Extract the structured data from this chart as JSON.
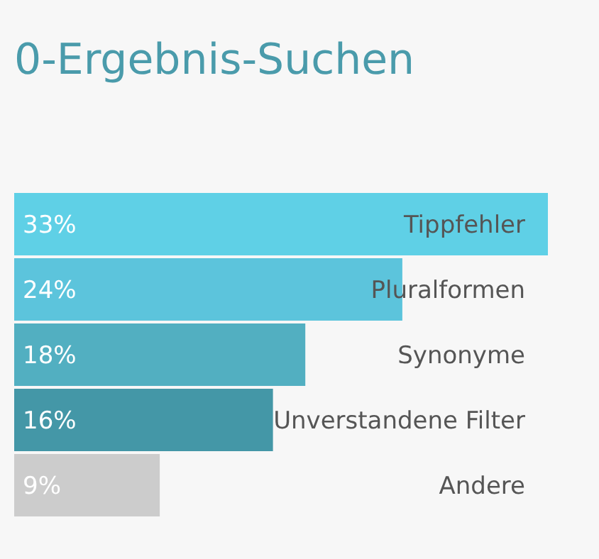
{
  "chart_data": {
    "type": "bar",
    "orientation": "horizontal",
    "title": "0-Ergebnis-Suchen",
    "categories": [
      "Tippfehler",
      "Pluralformen",
      "Synonyme",
      "Unverstandene Filter",
      "Andere"
    ],
    "values": [
      33,
      24,
      18,
      16,
      9
    ],
    "colors": [
      "#5fd0e6",
      "#5cc4dc",
      "#52afc1",
      "#4497a7",
      "#cccccc"
    ],
    "value_labels": [
      "33%",
      "24%",
      "18%",
      "16%",
      "9%"
    ]
  }
}
